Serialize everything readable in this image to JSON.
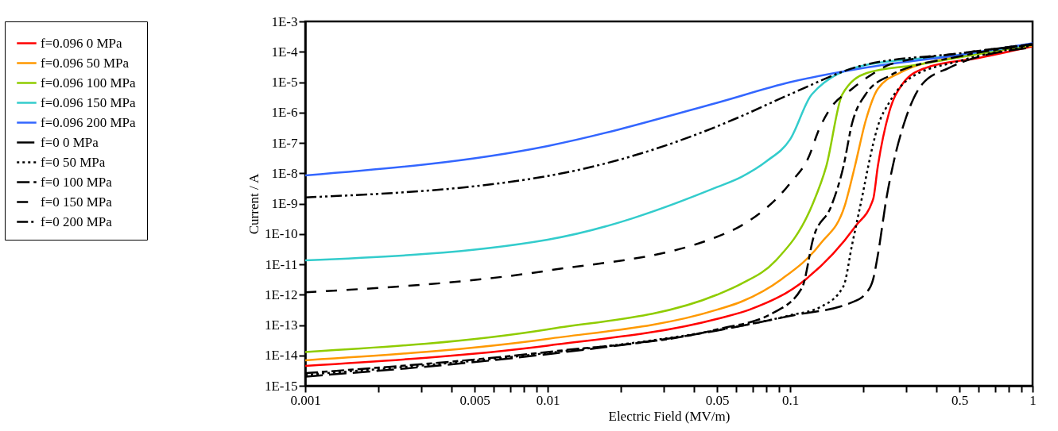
{
  "chart_data": {
    "type": "line",
    "xlabel": "Electric Field (MV/m)",
    "ylabel": "Current / A",
    "log": "xy",
    "grid": false,
    "legend": "left",
    "marker": "none",
    "xlim": [
      0.001,
      1
    ],
    "ylim": [
      1e-15,
      0.001
    ],
    "xticks": [
      0.001,
      {
        "value": 0.002,
        "label": null
      },
      {
        "value": 0.003,
        "label": null
      },
      {
        "value": 0.004,
        "label": null
      },
      0.005,
      {
        "value": 0.006,
        "label": null
      },
      {
        "value": 0.007,
        "label": null
      },
      {
        "value": 0.008,
        "label": null
      },
      {
        "value": 0.009,
        "label": null
      },
      0.01,
      {
        "value": 0.02,
        "label": null
      },
      {
        "value": 0.03,
        "label": null
      },
      {
        "value": 0.04,
        "label": null
      },
      0.05,
      {
        "value": 0.06,
        "label": null
      },
      {
        "value": 0.07,
        "label": null
      },
      {
        "value": 0.08,
        "label": null
      },
      {
        "value": 0.09,
        "label": null
      },
      0.1,
      {
        "value": 0.2,
        "label": null
      },
      {
        "value": 0.3,
        "label": null
      },
      {
        "value": 0.4,
        "label": null
      },
      0.5,
      {
        "value": 0.6,
        "label": null
      },
      {
        "value": 0.7,
        "label": null
      },
      {
        "value": 0.8,
        "label": null
      },
      {
        "value": 0.9,
        "label": null
      },
      1
    ],
    "yticks": [
      {
        "value": 1e-15,
        "label": "1E-15"
      },
      {
        "value": 1e-14,
        "label": "1E-14"
      },
      {
        "value": 1e-13,
        "label": "1E-13"
      },
      {
        "value": 1e-12,
        "label": "1E-12"
      },
      {
        "value": 1e-11,
        "label": "1E-11"
      },
      {
        "value": 1e-10,
        "label": "1E-10"
      },
      {
        "value": 1e-09,
        "label": "1E-9"
      },
      {
        "value": 1e-08,
        "label": "1E-8"
      },
      {
        "value": 1e-07,
        "label": "1E-7"
      },
      {
        "value": 1e-06,
        "label": "1E-6"
      },
      {
        "value": 1e-05,
        "label": "1E-5"
      },
      {
        "value": 0.0001,
        "label": "1E-4"
      },
      {
        "value": 0.001,
        "label": "1E-3"
      }
    ],
    "series": [
      {
        "name": "f=0.096 0 MPa",
        "color": "#ff0000",
        "line_style": "solid",
        "x": [
          0.001,
          0.01,
          0.05,
          0.068,
          0.116,
          0.185,
          0.22,
          0.23,
          0.256,
          0.29,
          0.36,
          0.6,
          1
        ],
        "values": [
          4.5e-15,
          2.1e-14,
          1.6e-13,
          3.2e-13,
          3.2e-12,
          1.7e-10,
          1.4e-09,
          1.7e-08,
          1e-06,
          8.5e-06,
          2.9e-05,
          6.3e-05,
          0.00015
        ]
      },
      {
        "name": "f=0.096 50 MPa",
        "color": "#ff9900",
        "line_style": "solid",
        "x": [
          0.001,
          0.01,
          0.05,
          0.063,
          0.092,
          0.134,
          0.168,
          0.185,
          0.205,
          0.23,
          0.286,
          0.5,
          1
        ],
        "values": [
          6.9e-15,
          3.5e-14,
          3.2e-13,
          5.9e-13,
          3.2e-12,
          5e-11,
          8.5e-10,
          1.7e-08,
          5.4e-07,
          6e-06,
          2.1e-05,
          7.1e-05,
          0.00016
        ]
      },
      {
        "name": "f=0.096 100 MPa",
        "color": "#8fcc00",
        "line_style": "solid",
        "x": [
          0.001,
          0.01,
          0.05,
          0.063,
          0.087,
          0.123,
          0.141,
          0.164,
          0.207,
          0.324,
          1
        ],
        "values": [
          1.3e-14,
          7.2e-14,
          1e-12,
          2.3e-12,
          1.3e-11,
          8.5e-10,
          1.7e-08,
          3.9e-06,
          2e-05,
          3.6e-05,
          0.00017
        ]
      },
      {
        "name": "f=0.096 150 MPa",
        "color": "#33cccc",
        "line_style": "solid",
        "x": [
          0.001,
          0.01,
          0.05,
          0.063,
          0.08,
          0.1,
          0.123,
          0.2,
          0.5,
          1
        ],
        "values": [
          1.35e-11,
          6.5e-11,
          3.5e-09,
          7.6e-09,
          2.5e-08,
          1.3e-07,
          4e-06,
          3.5e-05,
          7.9e-05,
          0.00018
        ]
      },
      {
        "name": "f=0.096 200 MPa",
        "color": "#3366ff",
        "line_style": "solid",
        "x": [
          0.001,
          0.01,
          0.05,
          0.1,
          0.2,
          0.5,
          1
        ],
        "values": [
          8.5e-09,
          7.9e-08,
          2.1e-06,
          1e-05,
          2.9e-05,
          7.9e-05,
          0.00019
        ]
      },
      {
        "name": "f=0 0 MPa",
        "color": "#000000",
        "line_style": "longdash",
        "x": [
          0.001,
          0.01,
          0.05,
          0.1,
          0.18,
          0.205,
          0.22,
          0.23,
          0.25,
          0.265,
          0.3,
          0.35,
          0.45,
          1
        ],
        "values": [
          2e-15,
          1.1e-14,
          6.6e-14,
          2e-13,
          5.6e-13,
          1.1e-12,
          3.2e-12,
          2e-11,
          1.6e-09,
          1.7e-08,
          6.5e-07,
          8.5e-06,
          2.9e-05,
          0.00014
        ]
      },
      {
        "name": "f=0 50 MPa",
        "color": "#000000",
        "line_style": "dotted",
        "x": [
          0.001,
          0.01,
          0.05,
          0.1,
          0.134,
          0.166,
          0.18,
          0.2,
          0.21,
          0.23,
          0.256,
          0.31,
          0.5,
          1
        ],
        "values": [
          2.3e-15,
          1.2e-14,
          6.8e-14,
          2.1e-13,
          4e-13,
          1.9e-12,
          4.3e-11,
          2.4e-09,
          1.7e-08,
          3.5e-07,
          2.1e-06,
          1.3e-05,
          5e-05,
          0.00016
        ]
      },
      {
        "name": "f=0 100 MPa",
        "color": "#000000",
        "line_style": "dashdash",
        "x": [
          0.001,
          0.01,
          0.05,
          0.085,
          0.112,
          0.125,
          0.148,
          0.166,
          0.18,
          0.205,
          0.256,
          0.5,
          1
        ],
        "values": [
          2.6e-15,
          1.3e-14,
          7.2e-14,
          2.5e-13,
          1.7e-12,
          7.9e-11,
          8.5e-10,
          1.7e-08,
          4.3e-07,
          4e-06,
          1.6e-05,
          7.1e-05,
          0.00017
        ]
      },
      {
        "name": "f=0 150 MPa",
        "color": "#000000",
        "line_style": "dashed",
        "x": [
          0.001,
          0.01,
          0.05,
          0.063,
          0.1,
          0.12,
          0.13,
          0.145,
          0.18,
          0.21,
          0.26,
          0.5,
          1
        ],
        "values": [
          1.2e-12,
          6.2e-12,
          8.1e-11,
          1.9e-10,
          4.7e-09,
          3.8e-08,
          2.2e-07,
          1.2e-06,
          6e-06,
          1.5e-05,
          3.9e-05,
          8.9e-05,
          0.00018
        ]
      },
      {
        "name": "f=0 200 MPa",
        "color": "#000000",
        "line_style": "dashdotdot",
        "x": [
          0.001,
          0.01,
          0.05,
          0.063,
          0.1,
          0.2,
          0.5,
          1
        ],
        "values": [
          1.6e-09,
          8.1e-09,
          3.5e-07,
          7.6e-07,
          4e-06,
          3.6e-05,
          8.9e-05,
          0.00018
        ]
      }
    ]
  }
}
